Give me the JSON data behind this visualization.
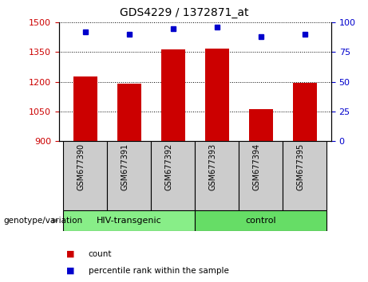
{
  "title": "GDS4229 / 1372871_at",
  "samples": [
    "GSM677390",
    "GSM677391",
    "GSM677392",
    "GSM677393",
    "GSM677394",
    "GSM677395"
  ],
  "bar_values": [
    1225,
    1190,
    1365,
    1370,
    1060,
    1195
  ],
  "percentile_values": [
    92,
    90,
    95,
    96,
    88,
    90
  ],
  "ylim_left": [
    900,
    1500
  ],
  "ylim_right": [
    0,
    100
  ],
  "yticks_left": [
    900,
    1050,
    1200,
    1350,
    1500
  ],
  "yticks_right": [
    0,
    25,
    50,
    75,
    100
  ],
  "bar_color": "#cc0000",
  "dot_color": "#0000cc",
  "groups": [
    {
      "label": "HIV-transgenic",
      "indices": [
        0,
        1,
        2
      ],
      "color": "#88ee88"
    },
    {
      "label": "control",
      "indices": [
        3,
        4,
        5
      ],
      "color": "#66dd66"
    }
  ],
  "group_label": "genotype/variation",
  "legend_count_label": "count",
  "legend_percentile_label": "percentile rank within the sample",
  "bar_color_legend": "#cc0000",
  "dot_color_legend": "#0000cc",
  "label_color_left": "#cc0000",
  "label_color_right": "#0000cc",
  "bar_width": 0.55,
  "sample_box_color": "#cccccc",
  "figsize": [
    4.61,
    3.54
  ],
  "dpi": 100
}
